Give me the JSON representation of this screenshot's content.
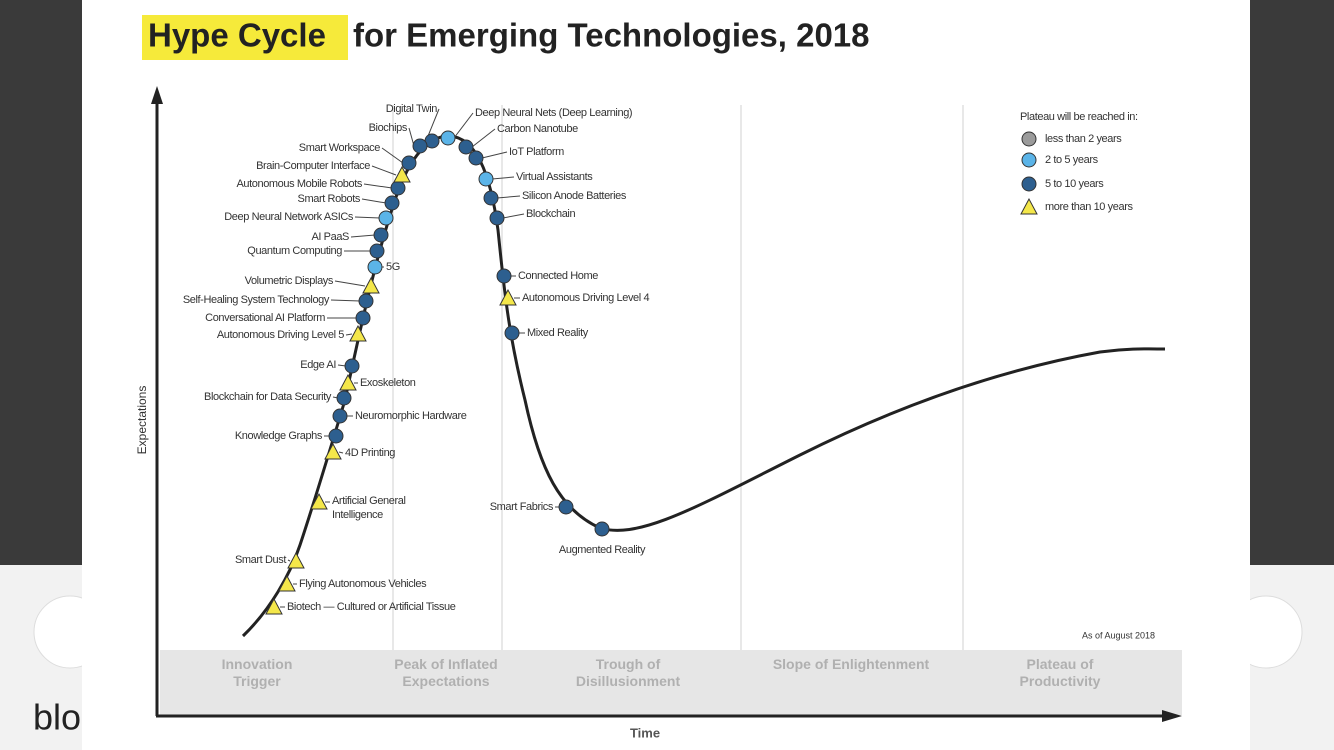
{
  "background_text": "blo",
  "title": {
    "highlight": "Hype Cycle",
    "rest": "for Emerging Technologies, 2018"
  },
  "y_axis_label": "Expectations",
  "x_axis_label": "Time",
  "legend": {
    "title": "Plateau will be reached in:",
    "items": [
      {
        "label": "less than 2 years",
        "color": "#9b9b9b",
        "marker": "circle",
        "technologies": []
      },
      {
        "label": "2 to 5 years",
        "color": "#5bb4e8",
        "marker": "circle",
        "technologies": [
          "Deep Neural Network ASICs",
          "5G",
          "Deep Neural Nets (Deep Learning)",
          "Virtual Assistants"
        ]
      },
      {
        "label": "5 to 10 years",
        "color": "#2d5f8f",
        "marker": "circle",
        "technologies": [
          "Digital Twin",
          "Biochips",
          "Smart Workspace",
          "Autonomous Mobile Robots",
          "Smart Robots",
          "AI PaaS",
          "Quantum Computing",
          "Self-Healing System Technology",
          "Conversational AI Platform",
          "Edge AI",
          "Blockchain for Data Security",
          "Neuromorphic Hardware",
          "Knowledge Graphs",
          "Carbon Nanotube",
          "IoT Platform",
          "Silicon Anode Batteries",
          "Blockchain",
          "Connected Home",
          "Mixed Reality",
          "Smart Fabrics",
          "Augmented Reality"
        ]
      },
      {
        "label": "more than 10 years",
        "color": "#f4e74a",
        "marker": "triangle",
        "technologies": [
          "Brain-Computer Interface",
          "Volumetric Displays",
          "Autonomous Driving Level 5",
          "Exoskeleton",
          "4D Printing",
          "Artificial General Intelligence",
          "Smart Dust",
          "Flying Autonomous Vehicles",
          "Biotech — Cultured or Artificial Tissue",
          "Autonomous Driving Level 4"
        ]
      }
    ]
  },
  "phases": [
    "Innovation Trigger",
    "Peak of Inflated Expectations",
    "Trough of Disillusionment",
    "Slope of Enlightenment",
    "Plateau of Productivity"
  ],
  "note": "As of August 2018"
}
